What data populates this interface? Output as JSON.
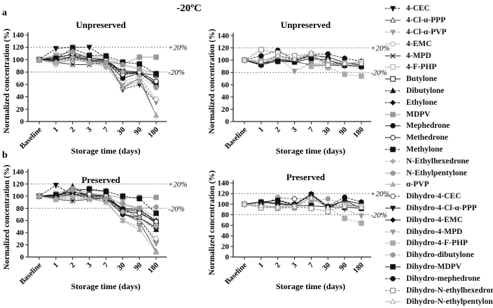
{
  "figure_title": "-20ºC",
  "panel_labels": [
    "a",
    "b"
  ],
  "ref_labels": {
    "upper": "+20%",
    "lower": "-20%"
  },
  "chart_data": [
    {
      "type": "line",
      "panel": "a-left",
      "title": "Unpreserved",
      "xlabel": "Storage time (days)",
      "ylabel": "Normalized concentration (%)",
      "categories": [
        "Baseline",
        "1",
        "2",
        "3",
        "7",
        "30",
        "90",
        "180"
      ],
      "ylim": [
        0,
        140
      ],
      "yticks": [
        0,
        20,
        40,
        60,
        80,
        100,
        120,
        140
      ],
      "reference_lines": [
        120,
        80
      ],
      "grid": false,
      "series": [
        {
          "name": "4-CEC",
          "values": [
            100,
            118,
            120,
            120,
            103,
            52,
            60,
            32
          ]
        },
        {
          "name": "4-Cl-α-PPP",
          "values": [
            100,
            100,
            105,
            100,
            97,
            55,
            70,
            10
          ]
        },
        {
          "name": "4-Cl-α-PVP",
          "values": [
            100,
            98,
            103,
            97,
            92,
            60,
            68,
            33
          ]
        },
        {
          "name": "4-EMC",
          "values": [
            100,
            92,
            100,
            95,
            90,
            65,
            72,
            36
          ]
        },
        {
          "name": "4-MPD",
          "values": [
            100,
            96,
            92,
            92,
            96,
            82,
            80,
            58
          ]
        },
        {
          "name": "4-F-PHP",
          "values": [
            100,
            108,
            112,
            105,
            103,
            92,
            85,
            78
          ]
        },
        {
          "name": "Butylone",
          "values": [
            100,
            104,
            108,
            100,
            100,
            80,
            78,
            75
          ]
        },
        {
          "name": "Dibutylone",
          "values": [
            100,
            97,
            102,
            97,
            96,
            76,
            78,
            60
          ]
        },
        {
          "name": "Ethylone",
          "values": [
            100,
            100,
            104,
            100,
            98,
            78,
            80,
            58
          ]
        },
        {
          "name": "MDPV",
          "values": [
            100,
            106,
            114,
            100,
            98,
            93,
            104,
            104
          ]
        },
        {
          "name": "Mephedrone",
          "values": [
            100,
            98,
            106,
            98,
            98,
            70,
            78,
            62
          ]
        },
        {
          "name": "Methedrone",
          "values": [
            100,
            102,
            110,
            103,
            100,
            76,
            80,
            65
          ]
        },
        {
          "name": "Methylone",
          "values": [
            100,
            102,
            118,
            107,
            106,
            96,
            93,
            77
          ]
        },
        {
          "name": "N-Ethylhexedrone",
          "values": [
            100,
            96,
            104,
            97,
            87,
            80,
            74,
            55
          ]
        },
        {
          "name": "N-Ethylpentylone",
          "values": [
            100,
            95,
            113,
            96,
            96,
            92,
            85,
            55
          ]
        },
        {
          "name": "α-PVP",
          "values": [
            100,
            95,
            100,
            95,
            90,
            55,
            65,
            10
          ]
        }
      ]
    },
    {
      "type": "line",
      "panel": "a-right",
      "title": "Unpreserved",
      "xlabel": "Storage time (days)",
      "ylabel": "Normalized concentration (%)",
      "categories": [
        "Baseline",
        "1",
        "2",
        "3",
        "7",
        "30",
        "90",
        "180"
      ],
      "ylim": [
        0,
        140
      ],
      "yticks": [
        0,
        20,
        40,
        60,
        80,
        100,
        120,
        140
      ],
      "reference_lines": [
        120,
        80
      ],
      "grid": false,
      "series": [
        {
          "name": "Dihydro-4-CEC",
          "values": [
            100,
            92,
            108,
            100,
            108,
            95,
            95,
            92
          ]
        },
        {
          "name": "Dihydro-4-Cl-α-PPP",
          "values": [
            100,
            92,
            102,
            98,
            92,
            92,
            92,
            90
          ]
        },
        {
          "name": "Dihydro-4-EMC",
          "values": [
            100,
            95,
            100,
            98,
            108,
            105,
            96,
            92
          ]
        },
        {
          "name": "Dihydro-4-MPD",
          "values": [
            100,
            95,
            105,
            82,
            95,
            95,
            92,
            90
          ]
        },
        {
          "name": "Dihydro-4-F-PHP",
          "values": [
            100,
            100,
            105,
            100,
            90,
            88,
            77,
            74
          ]
        },
        {
          "name": "Dihydro-dibutylone",
          "values": [
            100,
            100,
            102,
            100,
            105,
            92,
            90,
            88
          ]
        },
        {
          "name": "Dihydro-MDPV",
          "values": [
            100,
            93,
            98,
            97,
            103,
            100,
            92,
            90
          ]
        },
        {
          "name": "Dihydro-mephedrone",
          "values": [
            100,
            107,
            116,
            100,
            110,
            110,
            103,
            98
          ]
        },
        {
          "name": "Dihydro-N-ethylhexedrone",
          "values": [
            100,
            117,
            112,
            107,
            110,
            92,
            95,
            97
          ]
        },
        {
          "name": "Dihydro-N-ethylpentylone",
          "values": [
            100,
            98,
            108,
            102,
            112,
            100,
            95,
            95
          ]
        }
      ]
    },
    {
      "type": "line",
      "panel": "b-left",
      "title": "Preserved",
      "xlabel": "Storage time (days)",
      "ylabel": "Normalized concentration (%)",
      "categories": [
        "Baseline",
        "1",
        "2",
        "3",
        "7",
        "30",
        "90",
        "180"
      ],
      "ylim": [
        0,
        140
      ],
      "yticks": [
        0,
        20,
        40,
        60,
        80,
        100,
        120,
        140
      ],
      "reference_lines": [
        120,
        80
      ],
      "grid": false,
      "series": [
        {
          "name": "4-CEC",
          "values": [
            100,
            118,
            102,
            103,
            100,
            70,
            62,
            25
          ]
        },
        {
          "name": "4-Cl-α-PPP",
          "values": [
            100,
            100,
            112,
            110,
            108,
            72,
            58,
            9
          ]
        },
        {
          "name": "4-Cl-α-PVP",
          "values": [
            100,
            97,
            95,
            97,
            92,
            60,
            50,
            22
          ]
        },
        {
          "name": "4-EMC",
          "values": [
            100,
            95,
            100,
            98,
            95,
            72,
            62,
            30
          ]
        },
        {
          "name": "4-MPD",
          "values": [
            100,
            95,
            92,
            95,
            96,
            80,
            78,
            58
          ]
        },
        {
          "name": "4-F-PHP",
          "values": [
            100,
            100,
            105,
            102,
            100,
            85,
            80,
            65
          ]
        },
        {
          "name": "Butylone",
          "values": [
            100,
            102,
            108,
            100,
            100,
            78,
            75,
            55
          ]
        },
        {
          "name": "Dibutylone",
          "values": [
            100,
            98,
            116,
            97,
            95,
            80,
            65,
            45
          ]
        },
        {
          "name": "Ethylone",
          "values": [
            100,
            100,
            104,
            100,
            98,
            80,
            78,
            60
          ]
        },
        {
          "name": "MDPV",
          "values": [
            100,
            104,
            112,
            105,
            102,
            97,
            98,
            98
          ]
        },
        {
          "name": "Mephedrone",
          "values": [
            100,
            98,
            103,
            98,
            96,
            70,
            65,
            48
          ]
        },
        {
          "name": "Methedrone",
          "values": [
            100,
            101,
            107,
            103,
            100,
            75,
            72,
            58
          ]
        },
        {
          "name": "Methylone",
          "values": [
            100,
            102,
            108,
            112,
            108,
            100,
            96,
            72
          ]
        },
        {
          "name": "N-Ethylhexedrone",
          "values": [
            100,
            96,
            100,
            97,
            90,
            74,
            65,
            50
          ]
        },
        {
          "name": "N-Ethylpentylone",
          "values": [
            100,
            95,
            110,
            96,
            96,
            88,
            80,
            82
          ]
        },
        {
          "name": "α-PVP",
          "values": [
            100,
            96,
            100,
            96,
            90,
            60,
            45,
            8
          ]
        }
      ]
    },
    {
      "type": "line",
      "panel": "b-right",
      "title": "Preserved",
      "xlabel": "Storage time (days)",
      "ylabel": "Normalized concentration (%)",
      "categories": [
        "Baseline",
        "1",
        "2",
        "3",
        "7",
        "30",
        "90",
        "180"
      ],
      "ylim": [
        0,
        140
      ],
      "yticks": [
        0,
        20,
        40,
        60,
        80,
        100,
        120,
        140
      ],
      "reference_lines": [
        120,
        80
      ],
      "grid": false,
      "series": [
        {
          "name": "Dihydro-4-CEC",
          "values": [
            100,
            98,
            112,
            110,
            110,
            95,
            100,
            95
          ]
        },
        {
          "name": "Dihydro-4-Cl-α-PPP",
          "values": [
            100,
            104,
            102,
            98,
            118,
            95,
            107,
            92
          ]
        },
        {
          "name": "Dihydro-4-EMC",
          "values": [
            100,
            104,
            107,
            98,
            118,
            93,
            107,
            100
          ]
        },
        {
          "name": "Dihydro-4-MPD",
          "values": [
            100,
            96,
            94,
            92,
            115,
            95,
            90,
            78
          ]
        },
        {
          "name": "Dihydro-4-F-PHP",
          "values": [
            100,
            96,
            92,
            93,
            97,
            95,
            73,
            64
          ]
        },
        {
          "name": "Dihydro-dibutylone",
          "values": [
            100,
            98,
            95,
            100,
            105,
            110,
            100,
            95
          ]
        },
        {
          "name": "Dihydro-MDPV",
          "values": [
            100,
            104,
            100,
            98,
            97,
            95,
            94,
            92
          ]
        },
        {
          "name": "Dihydro-mephedrone",
          "values": [
            100,
            103,
            108,
            100,
            119,
            96,
            113,
            104
          ]
        },
        {
          "name": "Dihydro-N-ethylhexedrone",
          "values": [
            100,
            93,
            93,
            95,
            92,
            86,
            98,
            96
          ]
        },
        {
          "name": "Dihydro-N-ethylpentylone",
          "values": [
            100,
            97,
            95,
            96,
            112,
            93,
            96,
            94
          ]
        }
      ]
    }
  ],
  "legend": [
    {
      "name": "4-CEC",
      "marker": "triangle-down-filled",
      "color": "#111111",
      "dash": true
    },
    {
      "name": "4-Cl-α-PPP",
      "marker": "triangle-up-open",
      "color": "#444444",
      "dash": false
    },
    {
      "name": "4-Cl-α-PVP",
      "marker": "triangle-down-filled",
      "color": "#999999",
      "dash": true
    },
    {
      "name": "4-EMC",
      "marker": "circle-open",
      "color": "#aaaaaa",
      "dash": true
    },
    {
      "name": "4-MPD",
      "marker": "x",
      "color": "#222222",
      "dash": false
    },
    {
      "name": "4-F-PHP",
      "marker": "square-open",
      "color": "#aaaaaa",
      "dash": false
    },
    {
      "name": "Butylone",
      "marker": "square-open",
      "color": "#111111",
      "dash": false
    },
    {
      "name": "Dibutylone",
      "marker": "triangle-up-filled",
      "color": "#111111",
      "dash": true
    },
    {
      "name": "Ethylone",
      "marker": "diamond-filled",
      "color": "#111111",
      "dash": true
    },
    {
      "name": "MDPV",
      "marker": "square-filled",
      "color": "#999999",
      "dash": false
    },
    {
      "name": "Mephedrone",
      "marker": "circle-filled",
      "color": "#111111",
      "dash": false
    },
    {
      "name": "Methedrone",
      "marker": "circle-open",
      "color": "#111111",
      "dash": false
    },
    {
      "name": "Methylone",
      "marker": "square-filled",
      "color": "#111111",
      "dash": true
    },
    {
      "name": "N-Ethylhexedrone",
      "marker": "diamond-filled",
      "color": "#aaaaaa",
      "dash": true
    },
    {
      "name": "N-Ethylpentylone",
      "marker": "circle-filled",
      "color": "#999999",
      "dash": false
    },
    {
      "name": "α-PVP",
      "marker": "triangle-up-filled",
      "color": "#aaaaaa",
      "dash": false
    },
    {
      "name": "Dihydro-4-CEC",
      "marker": "circle-open",
      "color": "#444444",
      "dash": true
    },
    {
      "name": "Dihydro-4-Cl-α-PPP",
      "marker": "triangle-down-filled",
      "color": "#111111",
      "dash": false
    },
    {
      "name": "Dihydro-4-EMC",
      "marker": "diamond-filled",
      "color": "#111111",
      "dash": false
    },
    {
      "name": "Dihydro-4-MPD",
      "marker": "triangle-down-filled",
      "color": "#999999",
      "dash": true
    },
    {
      "name": "Dihydro-4-F-PHP",
      "marker": "square-filled",
      "color": "#aaaaaa",
      "dash": true
    },
    {
      "name": "Dihydro-dibutylone",
      "marker": "circle-filled",
      "color": "#999999",
      "dash": true
    },
    {
      "name": "Dihydro-MDPV",
      "marker": "square-filled",
      "color": "#111111",
      "dash": false
    },
    {
      "name": "Dihydro-mephedrone",
      "marker": "circle-filled",
      "color": "#111111",
      "dash": true
    },
    {
      "name": "Dihydro-N-ethylhexedrone",
      "marker": "square-open",
      "color": "#777777",
      "dash": true
    },
    {
      "name": "Dihydro-N-ethylpentylone",
      "marker": "triangle-up-open",
      "color": "#aaaaaa",
      "dash": false
    }
  ]
}
